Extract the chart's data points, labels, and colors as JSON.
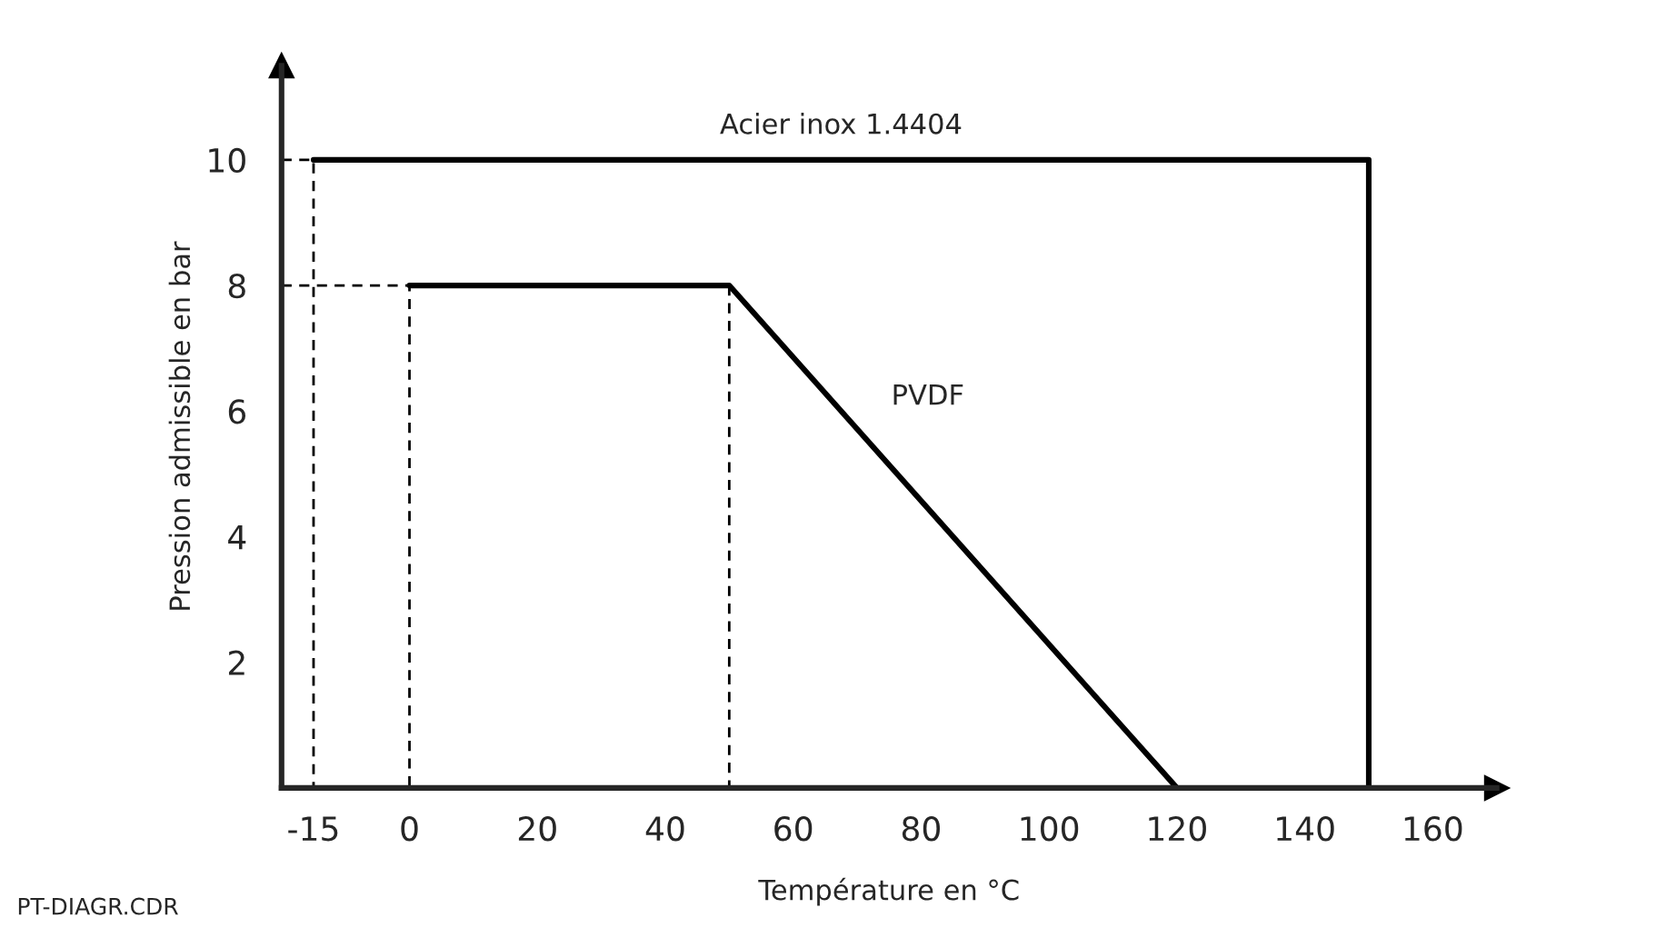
{
  "chart_data": {
    "type": "line",
    "xlabel": "Température en °C",
    "ylabel": "Pression admissible en bar",
    "xlim": [
      -20,
      170
    ],
    "ylim": [
      0,
      11.5
    ],
    "xticks": [
      -15,
      0,
      20,
      40,
      60,
      80,
      100,
      120,
      140,
      160
    ],
    "yticks": [
      2,
      4,
      6,
      8,
      10
    ],
    "grid": false,
    "legend": false,
    "marker": "none",
    "series": [
      {
        "name": "Acier inox 1.4404",
        "color": "#000000",
        "line_style": "solid",
        "x": [
          -15,
          150,
          150
        ],
        "values": [
          10,
          10,
          0
        ]
      },
      {
        "name": "PVDF",
        "color": "#000000",
        "line_style": "solid",
        "x": [
          0,
          50,
          120
        ],
        "values": [
          8,
          8,
          0
        ]
      },
      {
        "color": "#000000",
        "line_style": "dashed",
        "x": [
          -20,
          -15,
          -15
        ],
        "values": [
          10,
          10,
          0
        ]
      },
      {
        "color": "#000000",
        "line_style": "dashed",
        "x": [
          -20,
          0,
          0
        ],
        "values": [
          8,
          8,
          0
        ]
      },
      {
        "color": "#000000",
        "line_style": "dashed",
        "x": [
          50,
          50
        ],
        "values": [
          8,
          0
        ]
      }
    ],
    "annotations": [
      "PT-DIAGR.CDR"
    ]
  }
}
